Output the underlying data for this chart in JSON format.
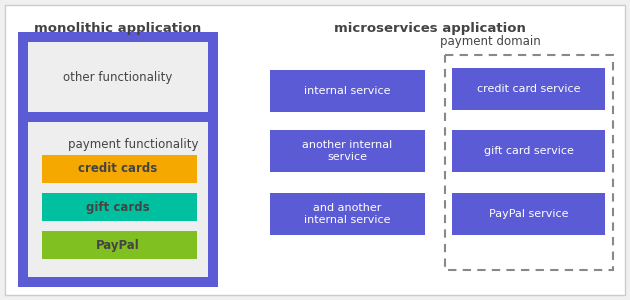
{
  "bg_color": "#f0f0f0",
  "main_bg": "#ffffff",
  "purple_dark": "#5b5bd6",
  "purple_light": "#7b7be8",
  "light_gray": "#eeeeee",
  "gold": "#f5a800",
  "teal": "#00c0a0",
  "green": "#80c020",
  "text_dark": "#444444",
  "text_white": "#ffffff",
  "title_mono": "monolithic application",
  "title_micro": "microservices application",
  "label_other": "other functionality",
  "label_payment_func": "payment functionality",
  "label_credit": "credit cards",
  "label_gift": "gift cards",
  "label_paypal": "PayPal",
  "label_payment_domain": "payment domain",
  "left_services": [
    "internal service",
    "another internal\nservice",
    "and another\ninternal service"
  ],
  "right_services": [
    "credit card service",
    "gift card service",
    "PayPal service"
  ]
}
